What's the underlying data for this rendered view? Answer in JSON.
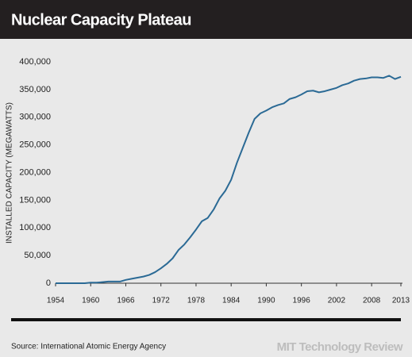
{
  "chart_data": {
    "type": "line",
    "title": "Nuclear Capacity Plateau",
    "ylabel": "INSTALLED CAPACITY (MEGAWATTS)",
    "x": [
      1954,
      1955,
      1956,
      1957,
      1958,
      1959,
      1960,
      1961,
      1962,
      1963,
      1964,
      1965,
      1966,
      1967,
      1968,
      1969,
      1970,
      1971,
      1972,
      1973,
      1974,
      1975,
      1976,
      1977,
      1978,
      1979,
      1980,
      1981,
      1982,
      1983,
      1984,
      1985,
      1986,
      1987,
      1988,
      1989,
      1990,
      1991,
      1992,
      1993,
      1994,
      1995,
      1996,
      1997,
      1998,
      1999,
      2000,
      2001,
      2002,
      2003,
      2004,
      2005,
      2006,
      2007,
      2008,
      2009,
      2010,
      2011,
      2012,
      2013
    ],
    "series": [
      {
        "color": "#2b6a95",
        "values": [
          0,
          0,
          0,
          0,
          0,
          0,
          1000,
          1000,
          2000,
          3000,
          3000,
          3000,
          6000,
          8000,
          10000,
          12000,
          15000,
          20000,
          27000,
          35000,
          45000,
          60000,
          70000,
          83000,
          97000,
          112000,
          118000,
          133000,
          153000,
          167000,
          187000,
          218000,
          245000,
          272000,
          297000,
          307000,
          312000,
          318000,
          322000,
          325000,
          333000,
          336000,
          341000,
          347000,
          348000,
          345000,
          347000,
          350000,
          353000,
          358000,
          361000,
          366000,
          369000,
          370000,
          372000,
          372000,
          371000,
          375000,
          369000,
          373000
        ]
      }
    ],
    "xlim": [
      1954,
      2013
    ],
    "xticks": [
      1954,
      1960,
      1966,
      1972,
      1978,
      1984,
      1990,
      1996,
      2002,
      2008,
      2013
    ],
    "ylim": [
      0,
      400000
    ],
    "yticks": [
      0,
      {
        "value": 50000,
        "label": "50,000"
      },
      {
        "value": 100000,
        "label": "100,000"
      },
      {
        "value": 150000,
        "label": "150,000"
      },
      {
        "value": 200000,
        "label": "200,000"
      },
      {
        "value": 250000,
        "label": "250,000"
      },
      {
        "value": 300000,
        "label": "300,000"
      },
      {
        "value": 350000,
        "label": "350,000"
      },
      {
        "value": 400000,
        "label": "400,000"
      }
    ]
  },
  "source": "Source: International Atomic Energy Agency",
  "credit": "MIT Technology Review"
}
